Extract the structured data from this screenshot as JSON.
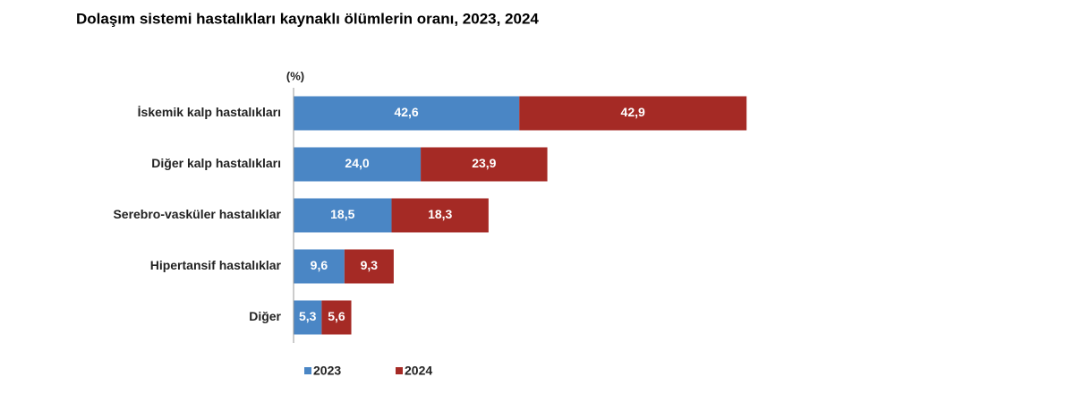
{
  "chart_data": {
    "type": "stacked-bar-horizontal",
    "title": "Dolaşım sistemi hastalıkları kaynaklı ölümlerin oranı, 2023, 2024",
    "unit_label": "(%)",
    "categories": [
      "İskemik kalp hastalıkları",
      "Diğer kalp hastalıkları",
      "Serebro-vasküler hastalıklar",
      "Hipertansif hastalıklar",
      "Diğer"
    ],
    "xlim": [
      0,
      100
    ],
    "series": [
      {
        "name": "2023",
        "color": "#4a86c5",
        "values": [
          42.6,
          24.0,
          18.5,
          9.6,
          5.3
        ],
        "value_labels": [
          "42,6",
          "24,0",
          "18,5",
          "9,6",
          "5,3"
        ]
      },
      {
        "name": "2024",
        "color": "#a52a25",
        "values": [
          42.9,
          23.9,
          18.3,
          9.3,
          5.6
        ],
        "value_labels": [
          "42,9",
          "23,9",
          "18,3",
          "9,3",
          "5,6"
        ]
      }
    ]
  }
}
